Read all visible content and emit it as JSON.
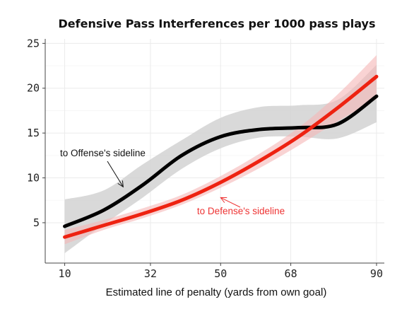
{
  "chart_data": {
    "type": "line",
    "title": "Defensive Pass Interferences per 1000 pass plays",
    "xlabel": "Estimated line of penalty (yards from own goal)",
    "ylabel": "",
    "xlim": [
      5,
      92
    ],
    "ylim": [
      0.5,
      25.5
    ],
    "x_ticks": [
      "10",
      "32",
      "50",
      "68",
      "90"
    ],
    "y_ticks": [
      "5",
      "10",
      "15",
      "20",
      "25"
    ],
    "grid": true,
    "legend": "none",
    "x": [
      10,
      20,
      30,
      40,
      50,
      60,
      70,
      80,
      90
    ],
    "series": [
      {
        "name": "to Offense's sideline",
        "color": "#000000",
        "band_color": "#d2d2d2",
        "values": [
          4.6,
          6.4,
          9.2,
          12.5,
          14.6,
          15.4,
          15.6,
          16.0,
          19.1
        ],
        "lower": [
          1.6,
          4.8,
          7.8,
          11.0,
          13.3,
          14.5,
          14.6,
          14.4,
          16.2
        ],
        "upper": [
          7.6,
          8.6,
          11.5,
          14.2,
          16.7,
          17.9,
          18.1,
          18.7,
          22.6
        ]
      },
      {
        "name": "to Defense's sideline",
        "color": "#ee2211",
        "band_color": "#f5b5b5",
        "values": [
          3.4,
          4.7,
          6.0,
          7.5,
          9.5,
          11.9,
          14.6,
          17.8,
          21.3
        ],
        "lower": [
          2.6,
          4.2,
          5.5,
          7.0,
          8.9,
          11.1,
          13.6,
          16.3,
          18.8
        ],
        "upper": [
          4.2,
          5.3,
          6.6,
          8.1,
          10.2,
          12.7,
          15.6,
          19.3,
          23.7
        ]
      }
    ],
    "annotations": [
      {
        "text": "to Offense's sideline",
        "color": "#111111",
        "arrow_to": [
          25,
          9.0
        ]
      },
      {
        "text": "to Defense's sideline",
        "color": "#ee3333",
        "arrow_to": [
          50,
          7.8
        ]
      }
    ]
  }
}
